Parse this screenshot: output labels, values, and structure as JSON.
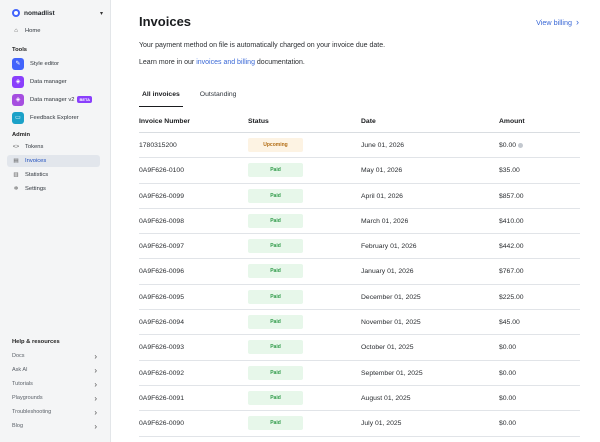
{
  "sidebar": {
    "org": "nomadlist",
    "home": "Home",
    "tools_heading": "Tools",
    "tools": [
      {
        "label": "Style editor",
        "color": "#4264fb"
      },
      {
        "label": "Data manager",
        "color": "#8a3ffc"
      },
      {
        "label": "Data manager v2",
        "color": "#a54ee0",
        "badge": "BETA"
      },
      {
        "label": "Feedback Explorer",
        "color": "#1ba1c8"
      }
    ],
    "admin_heading": "Admin",
    "admin": [
      {
        "label": "Tokens",
        "icon": "code-icon"
      },
      {
        "label": "Invoices",
        "icon": "invoice-icon",
        "active": true
      },
      {
        "label": "Statistics",
        "icon": "bar-chart-icon"
      },
      {
        "label": "Settings",
        "icon": "gear-icon"
      }
    ],
    "help_heading": "Help & resources",
    "help": [
      "Docs",
      "Ask AI",
      "Tutorials",
      "Playgrounds",
      "Troubleshooting",
      "Blog"
    ]
  },
  "main": {
    "title": "Invoices",
    "view_billing": "View billing",
    "payment_text": "Your payment method on file is automatically charged on your invoice due date.",
    "learn_prefix": "Learn more in our ",
    "learn_link": "invoices and billing",
    "learn_suffix": " documentation.",
    "tabs": [
      "All invoices",
      "Outstanding"
    ],
    "columns": [
      "Invoice Number",
      "Status",
      "Date",
      "Amount"
    ],
    "rows": [
      {
        "number": "1780315200",
        "status": "Upcoming",
        "date": "June 01, 2026",
        "amount": "$0.00"
      },
      {
        "number": "0A9F626-0100",
        "status": "Paid",
        "date": "May 01, 2026",
        "amount": "$35.00"
      },
      {
        "number": "0A9F626-0099",
        "status": "Paid",
        "date": "April 01, 2026",
        "amount": "$857.00"
      },
      {
        "number": "0A9F626-0098",
        "status": "Paid",
        "date": "March 01, 2026",
        "amount": "$410.00"
      },
      {
        "number": "0A9F626-0097",
        "status": "Paid",
        "date": "February 01, 2026",
        "amount": "$442.00"
      },
      {
        "number": "0A9F626-0096",
        "status": "Paid",
        "date": "January 01, 2026",
        "amount": "$767.00"
      },
      {
        "number": "0A9F626-0095",
        "status": "Paid",
        "date": "December 01, 2025",
        "amount": "$225.00"
      },
      {
        "number": "0A9F626-0094",
        "status": "Paid",
        "date": "November 01, 2025",
        "amount": "$45.00"
      },
      {
        "number": "0A9F626-0093",
        "status": "Paid",
        "date": "October 01, 2025",
        "amount": "$0.00"
      },
      {
        "number": "0A9F626-0092",
        "status": "Paid",
        "date": "September 01, 2025",
        "amount": "$0.00"
      },
      {
        "number": "0A9F626-0091",
        "status": "Paid",
        "date": "August 01, 2025",
        "amount": "$0.00"
      },
      {
        "number": "0A9F626-0090",
        "status": "Paid",
        "date": "July 01, 2025",
        "amount": "$0.00"
      }
    ]
  }
}
